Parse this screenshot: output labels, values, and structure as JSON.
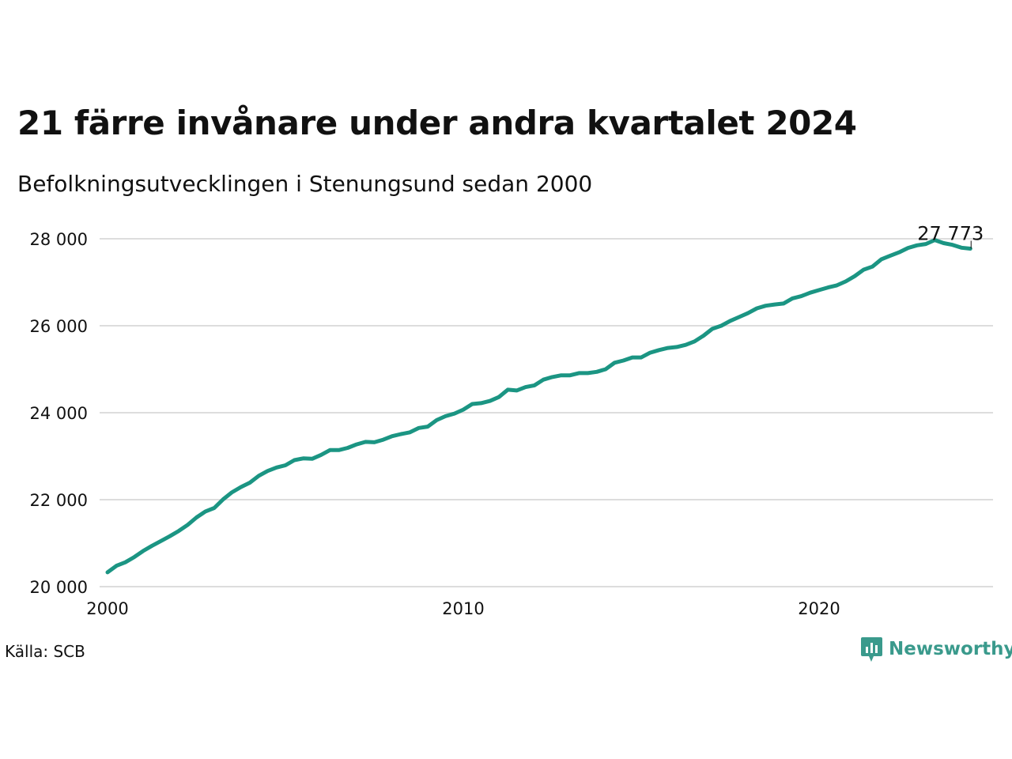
{
  "title": "21 färre invånare under andra kvartalet 2024",
  "subtitle": "Befolkningsutvecklingen i Stenungsund sedan 2000",
  "source": "Källa: SCB",
  "brand": {
    "name": "Newsworthy",
    "color": "#3a9a8c"
  },
  "colors": {
    "line": "#1b9583",
    "grid": "#dddddd",
    "text": "#111111"
  },
  "chart_data": {
    "type": "line",
    "x_tick_labels": [
      "2000",
      "2010",
      "2020"
    ],
    "y_tick_labels": [
      "20 000",
      "22 000",
      "24 000",
      "26 000",
      "28 000"
    ],
    "y_ticks": [
      20000,
      22000,
      24000,
      26000,
      28000
    ],
    "x_ticks": [
      2000,
      2010,
      2020
    ],
    "ylim": [
      20000,
      28000
    ],
    "xlim": [
      2000,
      2025
    ],
    "grid": "horizontal",
    "last_value_label": "27 773",
    "series": [
      {
        "x": [
          2000.0,
          2000.25,
          2000.5,
          2000.75,
          2001.0,
          2001.25,
          2001.5,
          2001.75,
          2002.0,
          2002.25,
          2002.5,
          2002.75,
          2003.0,
          2003.25,
          2003.5,
          2003.75,
          2004.0,
          2004.25,
          2004.5,
          2004.75,
          2005.0,
          2005.25,
          2005.5,
          2005.75,
          2006.0,
          2006.25,
          2006.5,
          2006.75,
          2007.0,
          2007.25,
          2007.5,
          2007.75,
          2008.0,
          2008.25,
          2008.5,
          2008.75,
          2009.0,
          2009.25,
          2009.5,
          2009.75,
          2010.0,
          2010.25,
          2010.5,
          2010.75,
          2011.0,
          2011.25,
          2011.5,
          2011.75,
          2012.0,
          2012.25,
          2012.5,
          2012.75,
          2013.0,
          2013.25,
          2013.5,
          2013.75,
          2014.0,
          2014.25,
          2014.5,
          2014.75,
          2015.0,
          2015.25,
          2015.5,
          2015.75,
          2016.0,
          2016.25,
          2016.5,
          2016.75,
          2017.0,
          2017.25,
          2017.5,
          2017.75,
          2018.0,
          2018.25,
          2018.5,
          2018.75,
          2019.0,
          2019.25,
          2019.5,
          2019.75,
          2020.0,
          2020.25,
          2020.5,
          2020.75,
          2021.0,
          2021.25,
          2021.5,
          2021.75,
          2022.0,
          2022.25,
          2022.5,
          2022.75,
          2023.0,
          2023.25,
          2023.5,
          2023.75,
          2024.0,
          2024.25
        ],
        "values": [
          20330,
          20480,
          20560,
          20680,
          20820,
          20940,
          21050,
          21160,
          21280,
          21420,
          21590,
          21730,
          21810,
          22010,
          22170,
          22290,
          22390,
          22550,
          22660,
          22740,
          22790,
          22910,
          22950,
          22940,
          23030,
          23140,
          23140,
          23190,
          23270,
          23330,
          23320,
          23380,
          23460,
          23510,
          23550,
          23650,
          23680,
          23830,
          23920,
          23980,
          24070,
          24200,
          24220,
          24270,
          24360,
          24530,
          24510,
          24590,
          24630,
          24760,
          24820,
          24860,
          24860,
          24910,
          24910,
          24940,
          25000,
          25150,
          25200,
          25270,
          25270,
          25380,
          25440,
          25490,
          25510,
          25560,
          25640,
          25770,
          25930,
          26000,
          26110,
          26200,
          26290,
          26400,
          26460,
          26490,
          26510,
          26630,
          26680,
          26760,
          26820,
          26880,
          26930,
          27020,
          27140,
          27290,
          27360,
          27530,
          27610,
          27690,
          27790,
          27850,
          27880,
          27970,
          27900,
          27860,
          27794,
          27773
        ]
      }
    ]
  }
}
